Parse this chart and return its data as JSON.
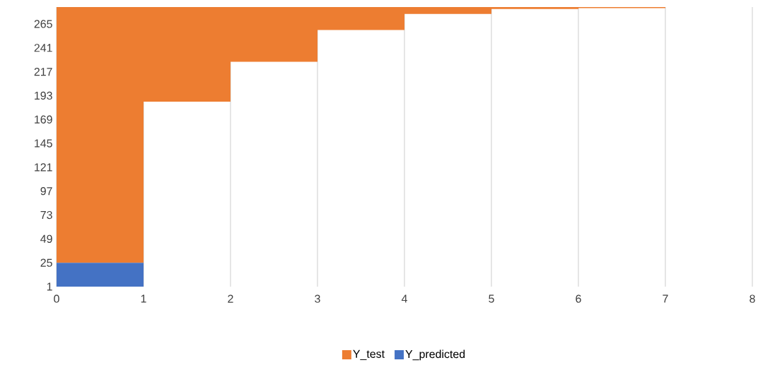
{
  "chart_data": {
    "type": "bar",
    "x": [
      0.5,
      1.5,
      2.5,
      3.5,
      4.5,
      5.5,
      6.5
    ],
    "series": [
      {
        "name": "Y_test",
        "color": "#ed7d31",
        "base": [
          25,
          187,
          227,
          259,
          275,
          280,
          281
        ],
        "values": [
          257,
          95,
          55,
          23,
          7,
          2,
          1
        ]
      },
      {
        "name": "Y_predicted",
        "color": "#4472c4",
        "x": [
          0.5
        ],
        "base": [
          1
        ],
        "values": [
          24
        ]
      }
    ],
    "xlim": [
      0,
      8
    ],
    "xticks": [
      0,
      1,
      2,
      3,
      4,
      5,
      6,
      7,
      8
    ],
    "ylim": [
      1,
      282
    ],
    "yticks": [
      1,
      25,
      49,
      73,
      97,
      121,
      145,
      169,
      193,
      217,
      241,
      265
    ],
    "grid": "x",
    "legend": "bottom"
  }
}
